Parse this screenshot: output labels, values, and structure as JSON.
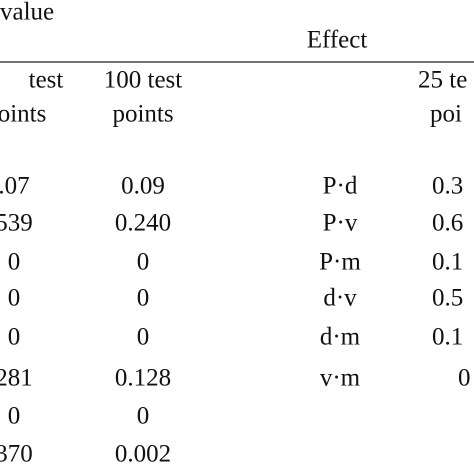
{
  "left": {
    "title": "value",
    "headers": [
      [
        "test",
        "oints"
      ],
      [
        "100 test",
        "points"
      ]
    ],
    "rows": [
      [
        ".07",
        "0.09"
      ],
      [
        "539",
        "0.240"
      ],
      [
        "0",
        "0"
      ],
      [
        "0",
        "0"
      ],
      [
        "0",
        "0"
      ],
      [
        "281",
        "0.128"
      ],
      [
        "0",
        "0"
      ],
      [
        "370",
        "0.002"
      ]
    ]
  },
  "right": {
    "title": "Effect",
    "headers": [
      [
        "25 te",
        "poi"
      ]
    ],
    "rows": [
      [
        "P·d",
        "0.3"
      ],
      [
        "P·v",
        "0.6"
      ],
      [
        "P·m",
        "0.1"
      ],
      [
        "d·v",
        "0.5"
      ],
      [
        "d·m",
        "0.1"
      ],
      [
        "v·m",
        "0"
      ]
    ]
  }
}
